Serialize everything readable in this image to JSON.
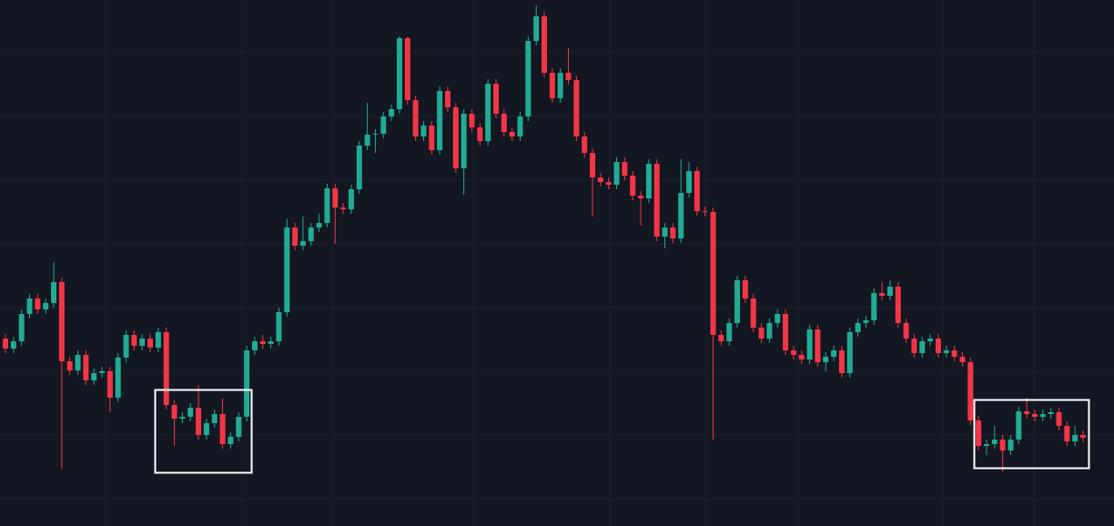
{
  "chart_data": {
    "type": "candlestick",
    "up_color": "#22ab94",
    "down_color": "#f23645",
    "ylim": [
      0,
      578
    ],
    "open": [
      206,
      195,
      203,
      233,
      250,
      238,
      245,
      268,
      181,
      171,
      188,
      160,
      168,
      170,
      141,
      185,
      210,
      198,
      206,
      196,
      213,
      133,
      118,
      120,
      130,
      100,
      113,
      123,
      90,
      98,
      120,
      193,
      203,
      200,
      203,
      235,
      328,
      308,
      313,
      328,
      333,
      371,
      350,
      348,
      370,
      418,
      430,
      431,
      450,
      458,
      536,
      468,
      428,
      440,
      413,
      478,
      460,
      393,
      453,
      438,
      423,
      486,
      453,
      433,
      428,
      450,
      533,
      560,
      498,
      470,
      498,
      490,
      428,
      410,
      383,
      378,
      375,
      400,
      385,
      363,
      360,
      398,
      318,
      328,
      316,
      366,
      390,
      346,
      345,
      210,
      203,
      223,
      270,
      250,
      218,
      206,
      223,
      233,
      193,
      188,
      183,
      216,
      180,
      186,
      193,
      168,
      213,
      223,
      226,
      256,
      253,
      263,
      223,
      206,
      190,
      203,
      206,
      190,
      193,
      186,
      180,
      116,
      88,
      90,
      95,
      83,
      95,
      126,
      123,
      120,
      123,
      125,
      110,
      93,
      100
    ],
    "high": [
      211,
      208,
      238,
      255,
      255,
      250,
      290,
      273,
      186,
      193,
      193,
      173,
      175,
      175,
      190,
      215,
      215,
      211,
      211,
      218,
      218,
      138,
      125,
      135,
      155,
      118,
      128,
      140,
      103,
      125,
      198,
      208,
      210,
      208,
      240,
      338,
      333,
      340,
      333,
      343,
      376,
      376,
      355,
      375,
      423,
      465,
      436,
      455,
      463,
      538,
      538,
      473,
      445,
      445,
      483,
      483,
      465,
      458,
      458,
      443,
      491,
      491,
      458,
      438,
      455,
      538,
      572,
      565,
      503,
      503,
      525,
      495,
      433,
      415,
      388,
      383,
      405,
      405,
      390,
      368,
      403,
      403,
      333,
      333,
      403,
      400,
      395,
      351,
      350,
      215,
      228,
      275,
      275,
      255,
      223,
      228,
      238,
      238,
      198,
      193,
      221,
      221,
      191,
      198,
      198,
      218,
      228,
      231,
      261,
      268,
      270,
      268,
      228,
      211,
      208,
      211,
      211,
      198,
      198,
      191,
      185,
      121,
      95,
      110,
      100,
      100,
      131,
      141,
      128,
      128,
      130,
      130,
      115,
      110,
      105
    ],
    "low": [
      190,
      190,
      198,
      228,
      233,
      233,
      240,
      63,
      166,
      166,
      155,
      155,
      163,
      125,
      136,
      180,
      193,
      193,
      191,
      191,
      128,
      88,
      113,
      115,
      95,
      95,
      108,
      85,
      85,
      93,
      115,
      188,
      195,
      195,
      198,
      230,
      303,
      303,
      308,
      323,
      328,
      310,
      343,
      343,
      365,
      413,
      410,
      426,
      445,
      453,
      463,
      423,
      423,
      408,
      408,
      455,
      388,
      364,
      433,
      418,
      418,
      448,
      428,
      423,
      423,
      445,
      528,
      493,
      465,
      465,
      485,
      423,
      405,
      340,
      373,
      370,
      370,
      380,
      358,
      330,
      355,
      313,
      305,
      311,
      311,
      361,
      341,
      340,
      95,
      198,
      198,
      218,
      245,
      213,
      201,
      201,
      218,
      188,
      183,
      178,
      178,
      175,
      170,
      181,
      163,
      163,
      208,
      218,
      221,
      248,
      248,
      218,
      201,
      185,
      185,
      198,
      185,
      185,
      181,
      175,
      111,
      83,
      78,
      85,
      60,
      78,
      90,
      118,
      115,
      115,
      118,
      105,
      88,
      88,
      92
    ],
    "close": [
      195,
      203,
      233,
      250,
      238,
      245,
      268,
      181,
      171,
      188,
      160,
      168,
      170,
      141,
      185,
      210,
      198,
      206,
      196,
      213,
      133,
      118,
      120,
      130,
      100,
      113,
      123,
      90,
      98,
      120,
      193,
      203,
      200,
      203,
      235,
      328,
      308,
      313,
      328,
      333,
      371,
      350,
      348,
      370,
      418,
      430,
      431,
      450,
      458,
      536,
      468,
      428,
      440,
      413,
      478,
      460,
      393,
      453,
      438,
      423,
      486,
      453,
      433,
      428,
      450,
      533,
      560,
      498,
      470,
      498,
      490,
      428,
      410,
      383,
      378,
      375,
      400,
      385,
      363,
      360,
      398,
      318,
      328,
      316,
      366,
      390,
      346,
      345,
      210,
      203,
      223,
      270,
      250,
      218,
      206,
      223,
      233,
      193,
      188,
      183,
      216,
      180,
      186,
      193,
      168,
      213,
      223,
      226,
      256,
      253,
      263,
      223,
      206,
      190,
      203,
      206,
      190,
      193,
      186,
      180,
      116,
      88,
      90,
      95,
      83,
      95,
      126,
      123,
      120,
      123,
      125,
      110,
      93,
      100,
      97
    ]
  }
}
